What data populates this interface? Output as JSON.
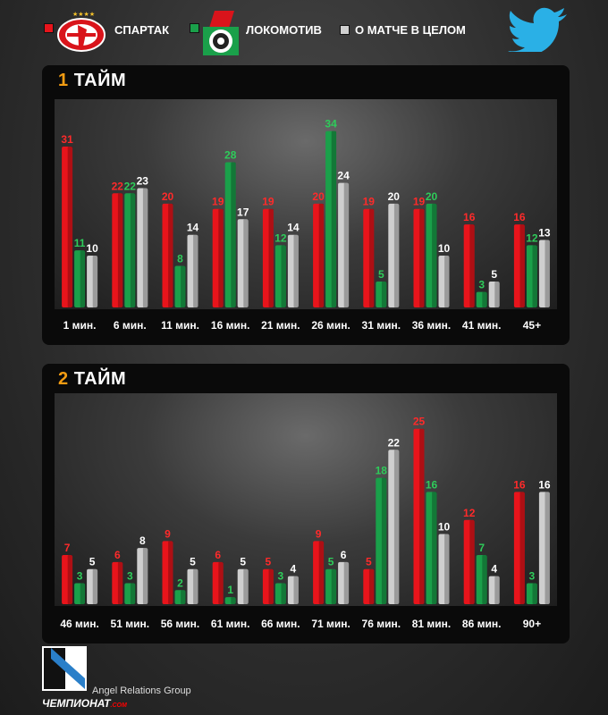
{
  "legend": {
    "spartak": {
      "label": "СПАРТАК",
      "color": "#e8141b"
    },
    "lokomotiv": {
      "label": "ЛОКОМОТИВ",
      "color": "#1aa04a"
    },
    "overall": {
      "label": "О МАТЧЕ В ЦЕЛОМ",
      "color": "#cfcfcf"
    }
  },
  "icons": {
    "twitter": "twitter-bird-icon",
    "spartak_logo": "spartak-crest-icon",
    "lokomotiv_logo": "lokomotiv-crest-icon"
  },
  "footer": {
    "agency": "Angel Relations Group",
    "brand": "ЧЕМПИОНАТ",
    "brand_suffix": ".COM"
  },
  "chart_data": [
    {
      "type": "bar",
      "title_number": "1",
      "title_text": "ТАЙМ",
      "categories": [
        "1 мин.",
        "6 мин.",
        "11 мин.",
        "16 мин.",
        "21 мин.",
        "26 мин.",
        "31 мин.",
        "36 мин.",
        "41 мин.",
        "45+"
      ],
      "series": [
        {
          "name": "СПАРТАК",
          "color": "#e8141b",
          "label_color": "#ff2a2a",
          "values": [
            31,
            22,
            20,
            19,
            19,
            20,
            19,
            19,
            16,
            16
          ]
        },
        {
          "name": "ЛОКОМОТИВ",
          "color": "#1aa04a",
          "label_color": "#2ecc5a",
          "values": [
            11,
            22,
            8,
            28,
            12,
            34,
            5,
            20,
            3,
            12
          ]
        },
        {
          "name": "О МАТЧЕ В ЦЕЛОМ",
          "color": "#cfcfcf",
          "label_color": "#ffffff",
          "values": [
            10,
            23,
            14,
            17,
            14,
            24,
            20,
            10,
            5,
            13
          ]
        }
      ],
      "ylim": [
        0,
        36
      ]
    },
    {
      "type": "bar",
      "title_number": "2",
      "title_text": "ТАЙМ",
      "categories": [
        "46 мин.",
        "51 мин.",
        "56 мин.",
        "61 мин.",
        "66 мин.",
        "71 мин.",
        "76 мин.",
        "81 мин.",
        "86 мин.",
        "90+"
      ],
      "series": [
        {
          "name": "СПАРТАК",
          "color": "#e8141b",
          "label_color": "#ff2a2a",
          "values": [
            7,
            6,
            9,
            6,
            5,
            9,
            5,
            25,
            12,
            16
          ]
        },
        {
          "name": "ЛОКОМОТИВ",
          "color": "#1aa04a",
          "label_color": "#2ecc5a",
          "values": [
            3,
            3,
            2,
            1,
            3,
            5,
            18,
            16,
            7,
            3
          ]
        },
        {
          "name": "О МАТЧЕ В ЦЕЛОМ",
          "color": "#cfcfcf",
          "label_color": "#ffffff",
          "values": [
            5,
            8,
            5,
            5,
            4,
            6,
            22,
            10,
            4,
            16
          ]
        }
      ],
      "ylim": [
        0,
        27
      ]
    }
  ]
}
